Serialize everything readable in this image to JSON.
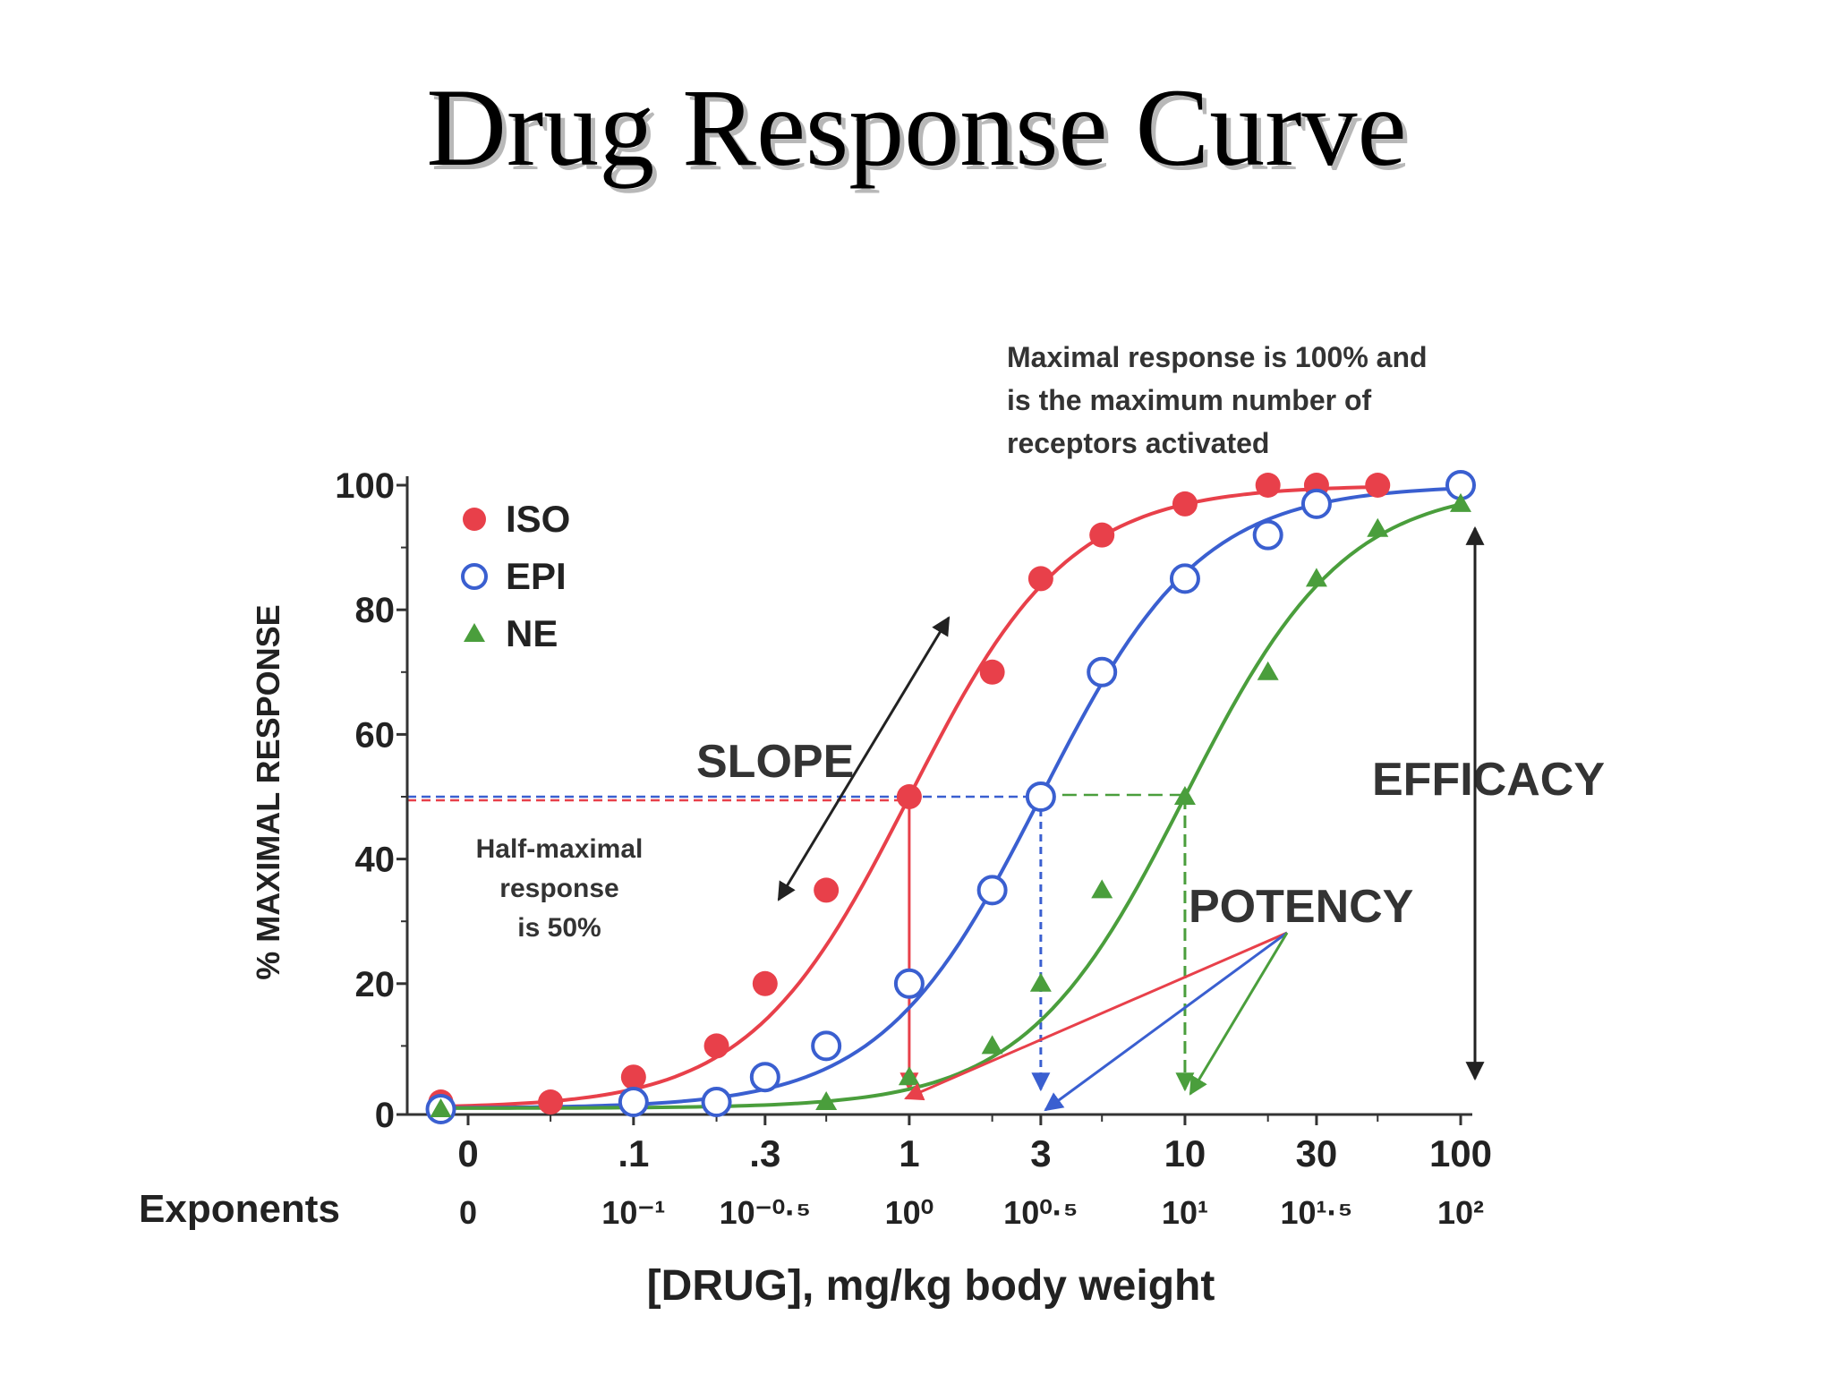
{
  "slide": {
    "title": "Drug Response Curve"
  },
  "chart_data": {
    "type": "line",
    "x_scale": "log",
    "y_range": [
      0,
      100
    ],
    "ylabel": "% MAXIMAL RESPONSE",
    "xlabel": "[DRUG], mg/kg body weight",
    "exponents_label": "Exponents",
    "y_ticks": [
      "0",
      "20",
      "40",
      "60",
      "80",
      "100"
    ],
    "x_ticks": [
      {
        "label": "0",
        "exp": "0"
      },
      {
        "label": ".1",
        "exp": "10⁻¹"
      },
      {
        "label": ".3",
        "exp": "10⁻⁰·⁵"
      },
      {
        "label": "1",
        "exp": "10⁰"
      },
      {
        "label": "3",
        "exp": "10⁰·⁵"
      },
      {
        "label": "10",
        "exp": "10¹"
      },
      {
        "label": "30",
        "exp": "10¹·⁵"
      },
      {
        "label": "100",
        "exp": "10²"
      }
    ],
    "series": [
      {
        "name": "ISO",
        "color": "#e8404a",
        "marker": "filled-circle",
        "ec50": 1,
        "points": [
          [
            0.02,
            1
          ],
          [
            0.05,
            1
          ],
          [
            0.1,
            5
          ],
          [
            0.2,
            10
          ],
          [
            0.3,
            20
          ],
          [
            0.5,
            35
          ],
          [
            1,
            50
          ],
          [
            2,
            70
          ],
          [
            3,
            85
          ],
          [
            5,
            92
          ],
          [
            10,
            97
          ],
          [
            20,
            100
          ],
          [
            30,
            100
          ],
          [
            50,
            100
          ]
        ]
      },
      {
        "name": "EPI",
        "color": "#3a5fd0",
        "marker": "open-circle",
        "ec50": 3,
        "points": [
          [
            0.02,
            0
          ],
          [
            0.1,
            1
          ],
          [
            0.2,
            1
          ],
          [
            0.3,
            5
          ],
          [
            0.5,
            10
          ],
          [
            1,
            20
          ],
          [
            2,
            35
          ],
          [
            3,
            50
          ],
          [
            5,
            70
          ],
          [
            10,
            85
          ],
          [
            20,
            92
          ],
          [
            30,
            97
          ],
          [
            100,
            100
          ]
        ]
      },
      {
        "name": "NE",
        "color": "#4a9e3c",
        "marker": "filled-triangle",
        "ec50": 10,
        "points": [
          [
            0.02,
            0
          ],
          [
            0.5,
            1
          ],
          [
            1,
            5
          ],
          [
            2,
            10
          ],
          [
            3,
            20
          ],
          [
            5,
            35
          ],
          [
            10,
            50
          ],
          [
            20,
            70
          ],
          [
            30,
            85
          ],
          [
            50,
            93
          ],
          [
            100,
            97
          ]
        ]
      }
    ],
    "annotations": {
      "max_note": [
        "Maximal response is 100% and",
        "is the maximum number of",
        "receptors activated"
      ],
      "half_note": [
        "Half-maximal",
        "response",
        "is 50%"
      ],
      "slope": "SLOPE",
      "efficacy": "EFFICACY",
      "potency": "POTENCY"
    }
  }
}
